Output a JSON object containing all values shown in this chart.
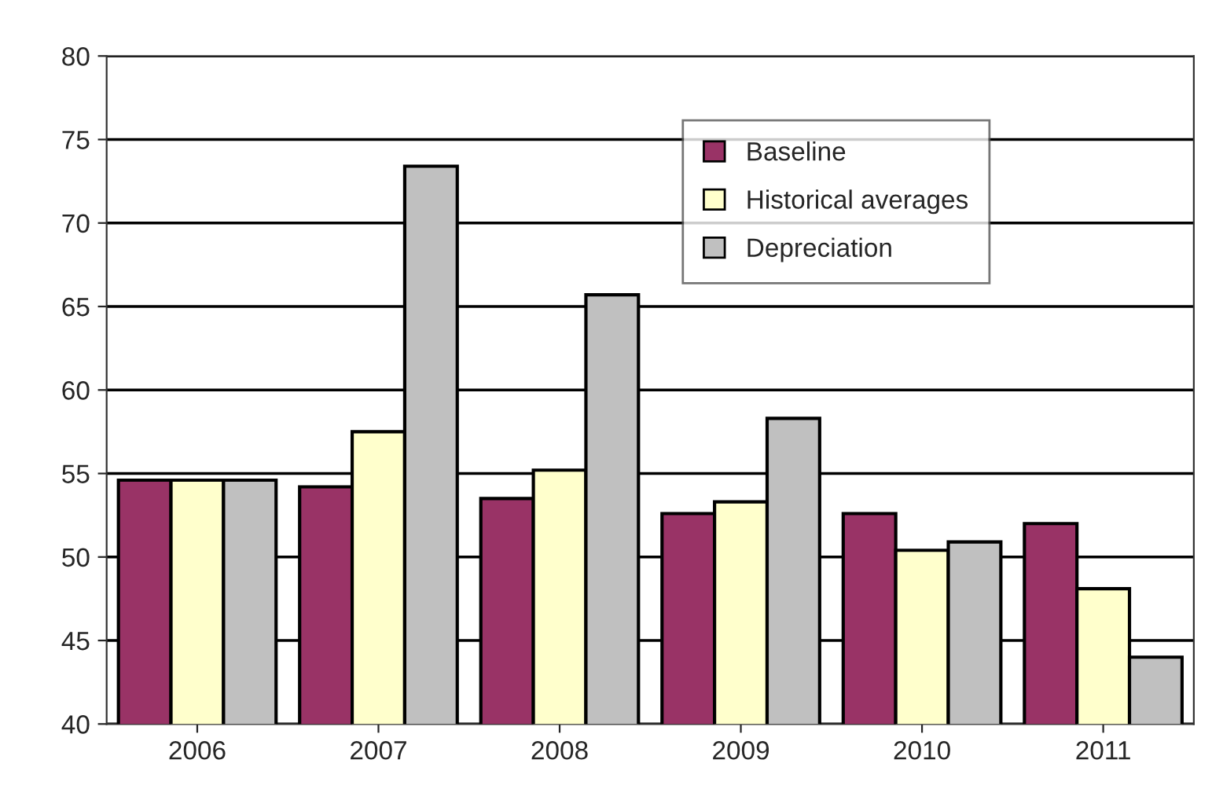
{
  "chart_data": {
    "type": "bar",
    "categories": [
      "2006",
      "2007",
      "2008",
      "2009",
      "2010",
      "2011"
    ],
    "series": [
      {
        "name": "Baseline",
        "color": "#993366",
        "values": [
          54.6,
          54.2,
          53.5,
          52.6,
          52.6,
          52.0
        ]
      },
      {
        "name": "Historical averages",
        "color": "#ffffcc",
        "values": [
          54.6,
          57.5,
          55.2,
          53.3,
          50.4,
          48.1
        ]
      },
      {
        "name": "Depreciation",
        "color": "#c0c0c0",
        "values": [
          54.6,
          73.4,
          65.7,
          58.3,
          50.9,
          44.0
        ]
      }
    ],
    "ylim": [
      40,
      80
    ],
    "yticks": [
      40,
      45,
      50,
      55,
      60,
      65,
      70,
      75,
      80
    ],
    "grid": "y",
    "legend": "top right"
  }
}
